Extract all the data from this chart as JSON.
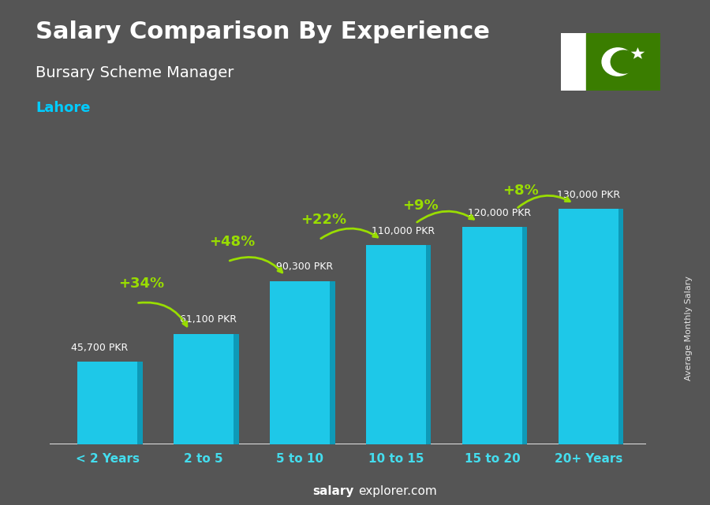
{
  "title": "Salary Comparison By Experience",
  "subtitle": "Bursary Scheme Manager",
  "city": "Lahore",
  "categories": [
    "< 2 Years",
    "2 to 5",
    "5 to 10",
    "10 to 15",
    "15 to 20",
    "20+ Years"
  ],
  "values": [
    45700,
    61100,
    90300,
    110000,
    120000,
    130000
  ],
  "value_labels": [
    "45,700 PKR",
    "61,100 PKR",
    "90,300 PKR",
    "110,000 PKR",
    "120,000 PKR",
    "130,000 PKR"
  ],
  "pct_labels": [
    "+34%",
    "+48%",
    "+22%",
    "+9%",
    "+8%"
  ],
  "bar_color_main": "#1ec8e8",
  "bar_color_side": "#0e9ab8",
  "bar_color_top": "#5de0f0",
  "background_color": "#555555",
  "title_color": "#ffffff",
  "subtitle_color": "#ffffff",
  "city_color": "#00ccff",
  "value_label_color": "#ffffff",
  "pct_color": "#99dd00",
  "xlabel_color": "#44ddee",
  "watermark_bold": "salary",
  "watermark_rest": "explorer.com",
  "ylabel_text": "Average Monthly Salary",
  "ylim": [
    0,
    145000
  ],
  "flag_white": "#ffffff",
  "flag_green": "#3a7d00"
}
